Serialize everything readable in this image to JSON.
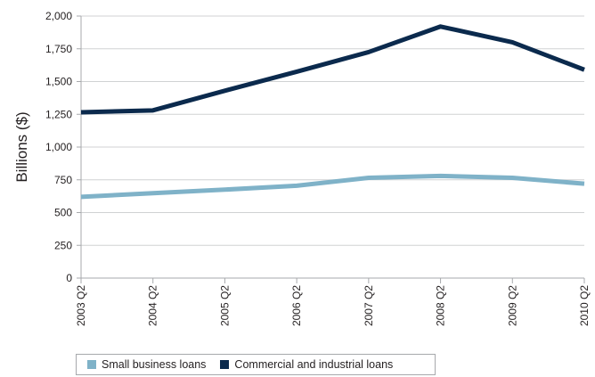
{
  "colors": {
    "small": "#7fb2c8",
    "commercial": "#0b2a4d",
    "axis": "#a7a9ac",
    "grid": "#d0d2d3"
  },
  "chart_data": {
    "type": "line",
    "ylabel": "Billions ($)",
    "xlabel": "",
    "title": "",
    "categories": [
      "2003 Q2",
      "2004 Q2",
      "2005 Q2",
      "2006 Q2",
      "2007 Q2",
      "2008 Q2",
      "2009 Q2",
      "2010 Q2"
    ],
    "ylim": [
      0,
      2000
    ],
    "yticks": [
      0,
      250,
      500,
      750,
      1000,
      1250,
      1500,
      1750,
      2000
    ],
    "ytick_labels": [
      "0",
      "250",
      "500",
      "750",
      "1,000",
      "1,250",
      "1,500",
      "1,750",
      "2,000"
    ],
    "legend_position": "bottom",
    "series": [
      {
        "name": "Small business loans",
        "color": "#7fb2c8",
        "values": [
          620,
          648,
          675,
          705,
          765,
          780,
          765,
          720
        ]
      },
      {
        "name": "Commercial and industrial loans",
        "color": "#0b2a4d",
        "values": [
          1265,
          1280,
          1430,
          1575,
          1725,
          1920,
          1800,
          1590
        ]
      }
    ]
  }
}
